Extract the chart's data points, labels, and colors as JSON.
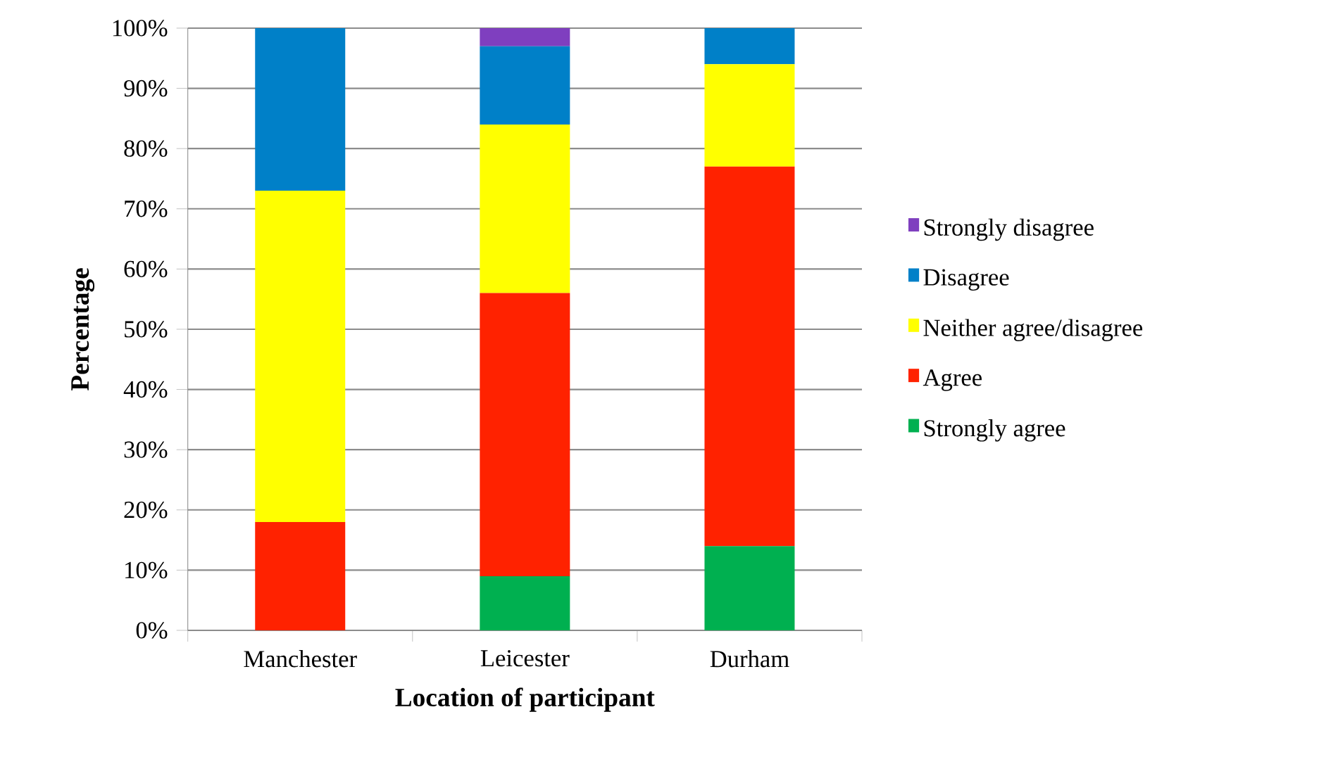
{
  "chart_data": {
    "type": "bar",
    "stacked": true,
    "xlabel": "Location of participant",
    "ylabel": "Percentage",
    "categories": [
      "Manchester",
      "Leicester",
      "Durham"
    ],
    "series": [
      {
        "name": "Strongly agree",
        "color": "#00b050",
        "values": [
          0,
          9,
          14
        ]
      },
      {
        "name": "Agree",
        "color": "#ff2200",
        "values": [
          18,
          47,
          63
        ]
      },
      {
        "name": "Neither agree/disagree",
        "color": "#ffff00",
        "values": [
          55,
          28,
          17
        ]
      },
      {
        "name": "Disagree",
        "color": "#0080c8",
        "values": [
          27,
          13,
          6
        ]
      },
      {
        "name": "Strongly disagree",
        "color": "#7f3fbf",
        "values": [
          0,
          3,
          0
        ]
      }
    ],
    "ylim": [
      0,
      100
    ],
    "yticks": [
      {
        "value": 0,
        "label": "0%"
      },
      {
        "value": 10,
        "label": "10%"
      },
      {
        "value": 20,
        "label": "20%"
      },
      {
        "value": 30,
        "label": "30%"
      },
      {
        "value": 40,
        "label": "40%"
      },
      {
        "value": 50,
        "label": "50%"
      },
      {
        "value": 60,
        "label": "60%"
      },
      {
        "value": 70,
        "label": "70%"
      },
      {
        "value": 80,
        "label": "80%"
      },
      {
        "value": 90,
        "label": "90%"
      },
      {
        "value": 100,
        "label": "100%"
      }
    ],
    "grid": "y",
    "legend": "right"
  }
}
